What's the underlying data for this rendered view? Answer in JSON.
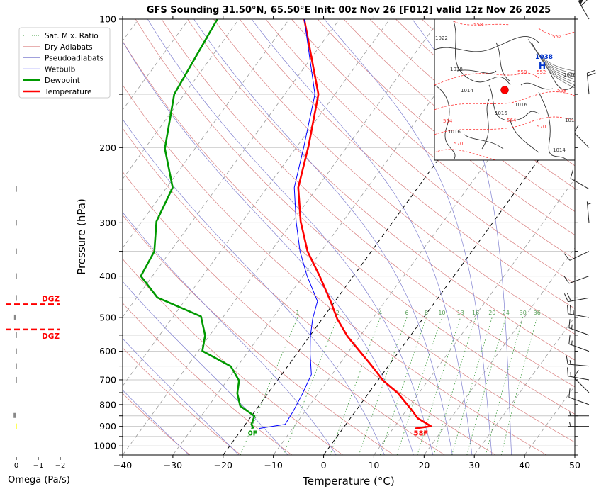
{
  "chart_data": {
    "type": "line",
    "subtype": "skew-T log-P sounding",
    "title": "GFS Sounding 31.50°N, 65.50°E Init: 00z Nov 26 [F012] valid 12z Nov 26 2025",
    "xlabel": "Temperature (°C)",
    "ylabel": "Pressure (hPa)",
    "xlim": [
      -40,
      50
    ],
    "ylim": [
      1050,
      100
    ],
    "xticks": [
      -40,
      -30,
      -20,
      -10,
      0,
      10,
      20,
      30,
      40,
      50
    ],
    "xtick_labels": [
      "−40",
      "−30",
      "−20",
      "−10",
      "0",
      "10",
      "20",
      "30",
      "40",
      "50"
    ],
    "yticks_labeled": [
      100,
      200,
      300,
      400,
      500,
      600,
      700,
      800,
      900,
      1000
    ],
    "yticks_minor": [
      150,
      250,
      350,
      450,
      550,
      650,
      750,
      850,
      950,
      1050
    ],
    "grid": true,
    "legend_position": "top-left",
    "legend": [
      {
        "label": "Sat. Mix. Ratio",
        "color": "#3a9a3a",
        "style": "dotted"
      },
      {
        "label": "Dry Adiabats",
        "color": "#d98080",
        "style": "solid"
      },
      {
        "label": "Pseudoadiabats",
        "color": "#8080d0",
        "style": "solid"
      },
      {
        "label": "Wetbulb",
        "color": "#0000ff",
        "style": "solid"
      },
      {
        "label": "Dewpoint",
        "color": "#009900",
        "style": "solid-thick"
      },
      {
        "label": "Temperature",
        "color": "#ff0000",
        "style": "solid-thick"
      }
    ],
    "series": [
      {
        "name": "Temperature",
        "color": "#ff0000",
        "pressure": [
          100,
          150,
          198,
          248,
          298,
          350,
          400,
          458,
          504,
          554,
          609,
          646,
          703,
          753,
          828,
          861,
          899,
          910
        ],
        "values": [
          -67,
          -53.3,
          -47.8,
          -43.8,
          -38.4,
          -32.7,
          -26.7,
          -20.9,
          -17,
          -12.4,
          -7,
          -3.6,
          1.1,
          5.9,
          11.3,
          13.4,
          17.2,
          14.4
        ]
      },
      {
        "name": "Dewpoint",
        "color": "#009900",
        "pressure": [
          100,
          150,
          201,
          248,
          298,
          350,
          400,
          449,
          497,
          551,
          599,
          651,
          703,
          753,
          806,
          851,
          890,
          910
        ],
        "values": [
          -84.3,
          -82,
          -76,
          -68.8,
          -67.1,
          -63.2,
          -62.3,
          -55.9,
          -44.5,
          -40.9,
          -39.2,
          -31.3,
          -27.6,
          -26.1,
          -23.7,
          -19.4,
          -18.8,
          -17.8
        ]
      },
      {
        "name": "Wetbulb",
        "color": "#0000ff",
        "pressure": [
          100,
          150,
          198,
          248,
          298,
          350,
          400,
          458,
          504,
          554,
          609,
          680,
          753,
          828,
          890,
          910
        ],
        "values": [
          -67,
          -54,
          -48.7,
          -44.6,
          -39.3,
          -34.2,
          -29.2,
          -23.5,
          -21.9,
          -19.8,
          -17.3,
          -14.1,
          -13.1,
          -12.4,
          -12.1,
          -16.7
        ]
      }
    ],
    "surface_labels": {
      "dewpoint": "0F",
      "temperature": "58F"
    },
    "mixing_ratio_labels": [
      "1",
      "2",
      "4",
      "6",
      "8",
      "10",
      "13",
      "16",
      "20",
      "24",
      "30",
      "36"
    ],
    "mixing_ratio_values": [
      1,
      2,
      4,
      6,
      8,
      10,
      13,
      16,
      20,
      24,
      30,
      36
    ],
    "mixing_ratio_label_pressure": 500,
    "highlighted_isotherms": [
      0,
      -20
    ],
    "dry_adiabat_thetas": [
      -30,
      -20,
      -10,
      0,
      10,
      20,
      30,
      40,
      50,
      60,
      70,
      80,
      90,
      100,
      110,
      120,
      130,
      140,
      150,
      160,
      170,
      180
    ],
    "moist_adiabat_starts": [
      -30,
      -20,
      -10,
      0,
      10,
      16,
      20,
      24,
      28,
      32,
      36
    ],
    "wind_barbs": [
      {
        "pressure": 100,
        "direction": 330,
        "speed_kt": 60
      },
      {
        "pressure": 150,
        "direction": 355,
        "speed_kt": 20
      },
      {
        "pressure": 200,
        "direction": 315,
        "speed_kt": 10
      },
      {
        "pressure": 250,
        "direction": 300,
        "speed_kt": 10
      },
      {
        "pressure": 300,
        "direction": 355,
        "speed_kt": 5
      },
      {
        "pressure": 350,
        "direction": 245,
        "speed_kt": 10
      },
      {
        "pressure": 400,
        "direction": 250,
        "speed_kt": 10
      },
      {
        "pressure": 450,
        "direction": 260,
        "speed_kt": 20
      },
      {
        "pressure": 500,
        "direction": 280,
        "speed_kt": 25
      },
      {
        "pressure": 550,
        "direction": 290,
        "speed_kt": 15
      },
      {
        "pressure": 600,
        "direction": 290,
        "speed_kt": 15
      },
      {
        "pressure": 650,
        "direction": 275,
        "speed_kt": 15
      },
      {
        "pressure": 700,
        "direction": 280,
        "speed_kt": 15
      },
      {
        "pressure": 750,
        "direction": 315,
        "speed_kt": 10
      },
      {
        "pressure": 800,
        "direction": 290,
        "speed_kt": 10
      },
      {
        "pressure": 850,
        "direction": 270,
        "speed_kt": 5
      },
      {
        "pressure": 900,
        "direction": 270,
        "speed_kt": 5
      }
    ],
    "omega_panel": {
      "xlabel": "Omega (Pa/s)",
      "xticks": [
        0,
        -1,
        -2
      ],
      "xtick_labels": [
        "0",
        "−1",
        "−2"
      ],
      "dgz_label": "DGZ",
      "dgz_top_pressure": 480,
      "dgz_bottom_pressure": 550,
      "bars": [
        {
          "pressure": 250,
          "value": -0.02,
          "color": "#888888"
        },
        {
          "pressure": 300,
          "value": -0.02,
          "color": "#888888"
        },
        {
          "pressure": 350,
          "value": -0.02,
          "color": "#888888"
        },
        {
          "pressure": 400,
          "value": -0.02,
          "color": "#888888"
        },
        {
          "pressure": 450,
          "value": -0.04,
          "color": "#888888"
        },
        {
          "pressure": 500,
          "value": 0.08,
          "color": "#888888"
        },
        {
          "pressure": 550,
          "value": -0.04,
          "color": "#888888"
        },
        {
          "pressure": 600,
          "value": -0.04,
          "color": "#888888"
        },
        {
          "pressure": 650,
          "value": -0.04,
          "color": "#888888"
        },
        {
          "pressure": 700,
          "value": -0.04,
          "color": "#888888"
        },
        {
          "pressure": 850,
          "value": 0.1,
          "color": "#888888"
        },
        {
          "pressure": 900,
          "value": -0.02,
          "color": "#ffff33"
        }
      ]
    },
    "inset_map": {
      "description": "surface pressure and 500 hPa height map",
      "high_label": "H",
      "high_value": "1038",
      "isobar_labels": [
        "1022",
        "1018",
        "1014",
        "1016",
        "1016",
        "1016",
        "1026",
        "1016",
        "1014",
        "1016"
      ],
      "height_labels": [
        "558",
        "558",
        "552",
        "564",
        "564",
        "570",
        "570",
        "558",
        "552"
      ],
      "marker_color": "#ff0000"
    }
  }
}
